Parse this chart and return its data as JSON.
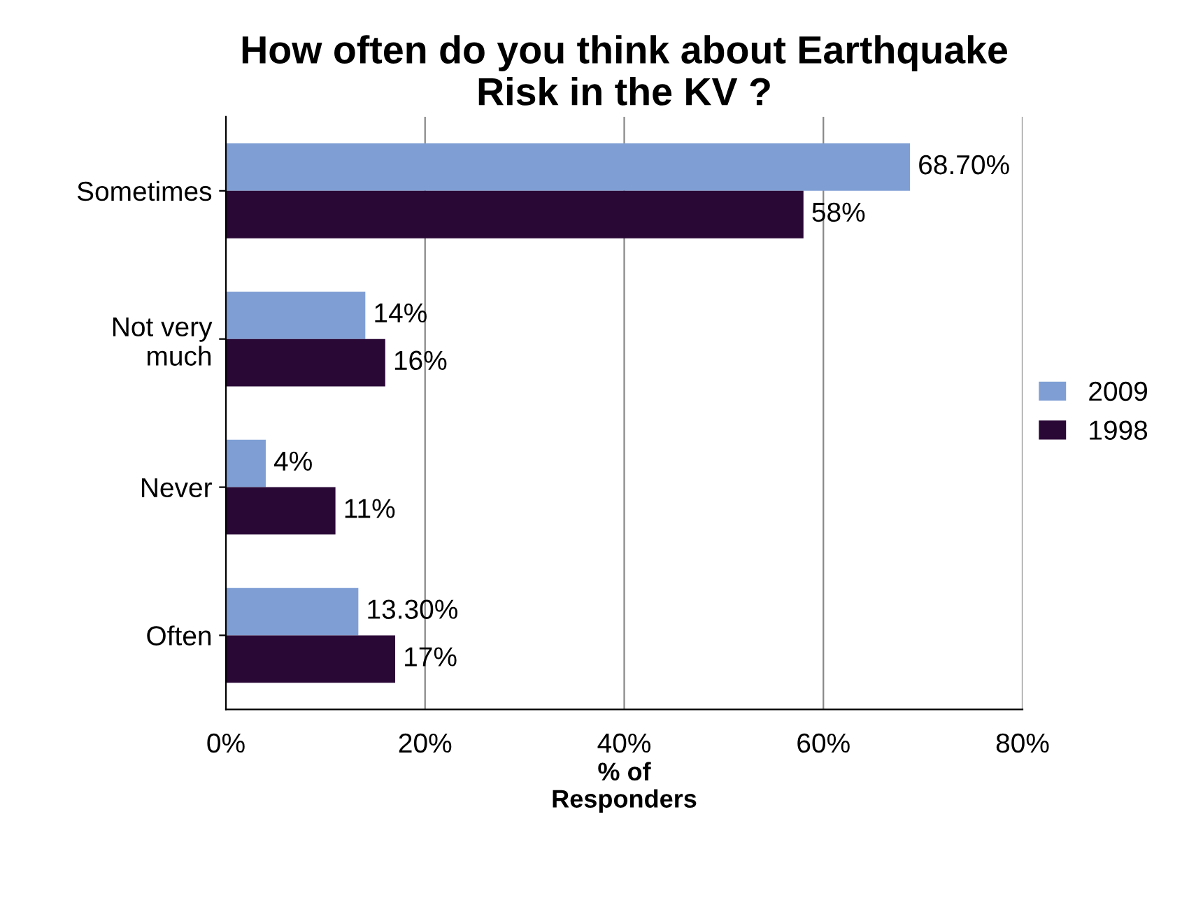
{
  "chart_data": {
    "type": "bar",
    "orientation": "horizontal",
    "title": "How often do you think about Earthquake\nRisk in the KV ?",
    "xlabel": "% of\nResponders",
    "categories": [
      "Sometimes",
      "Not very\nmuch",
      "Never",
      "Often"
    ],
    "series": [
      {
        "name": "2009",
        "color": "#7f9fd4",
        "values": [
          68.7,
          14,
          4,
          13.3
        ],
        "value_labels": [
          "68.70%",
          "14%",
          "4%",
          "13.30%"
        ]
      },
      {
        "name": "1998",
        "color": "#2a0836",
        "values": [
          58,
          16,
          11,
          17
        ],
        "value_labels": [
          "58%",
          "16%",
          "11%",
          "17%"
        ]
      }
    ],
    "xlim": [
      0,
      80
    ],
    "xticks": [
      {
        "value": 0,
        "label": "0%"
      },
      {
        "value": 20,
        "label": "20%"
      },
      {
        "value": 40,
        "label": "40%"
      },
      {
        "value": 60,
        "label": "60%"
      },
      {
        "value": 80,
        "label": "80%"
      }
    ],
    "grid": "x",
    "legend": "right"
  }
}
